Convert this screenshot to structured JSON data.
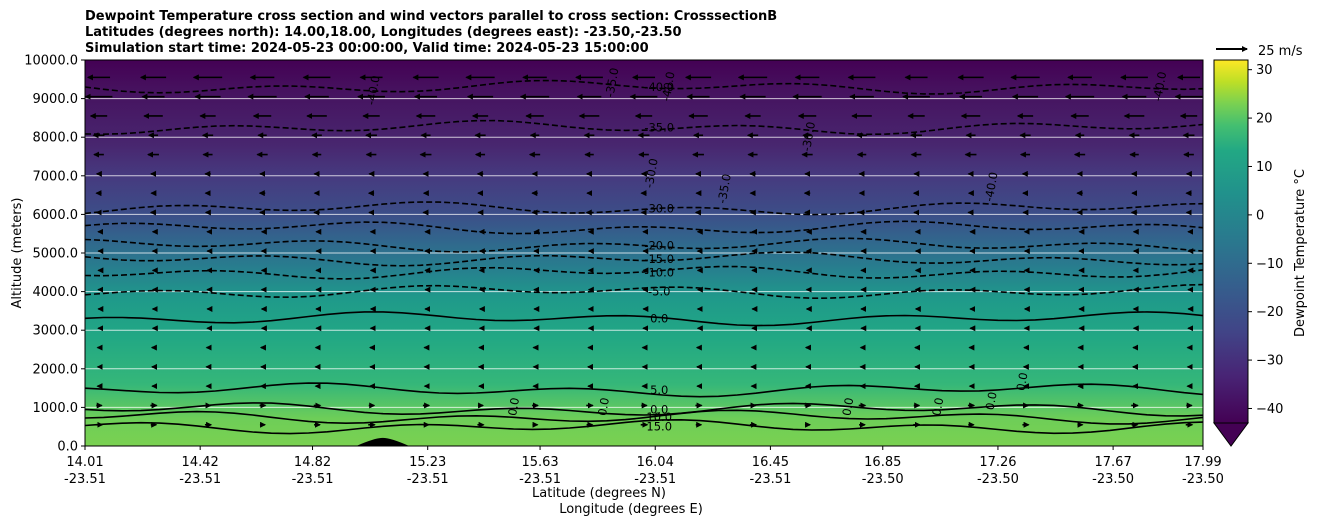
{
  "chart_data": {
    "type": "heatmap",
    "title_lines": [
      "Dewpoint Temperature cross section and wind vectors parallel to cross section: CrosssectionB",
      "Latitudes (degrees north): 14.00,18.00, Longitudes (degrees east): -23.50,-23.50",
      "Simulation start time: 2024-05-23 00:00:00, Valid time: 2024-05-23 15:00:00"
    ],
    "xlabel_lines": [
      "Latitude (degrees N)",
      "Longitude (degrees E)"
    ],
    "ylabel": "Altitude (meters)",
    "x_ticks": [
      {
        "lat": "14.01",
        "lon": "-23.51"
      },
      {
        "lat": "14.42",
        "lon": "-23.51"
      },
      {
        "lat": "14.82",
        "lon": "-23.51"
      },
      {
        "lat": "15.23",
        "lon": "-23.51"
      },
      {
        "lat": "15.63",
        "lon": "-23.51"
      },
      {
        "lat": "16.04",
        "lon": "-23.51"
      },
      {
        "lat": "16.45",
        "lon": "-23.51"
      },
      {
        "lat": "16.85",
        "lon": "-23.50"
      },
      {
        "lat": "17.26",
        "lon": "-23.50"
      },
      {
        "lat": "17.67",
        "lon": "-23.50"
      },
      {
        "lat": "17.99",
        "lon": "-23.50"
      }
    ],
    "xlim": [
      14.01,
      17.99
    ],
    "y_ticks": [
      "0.0",
      "1000.0",
      "2000.0",
      "3000.0",
      "4000.0",
      "5000.0",
      "6000.0",
      "7000.0",
      "8000.0",
      "9000.0",
      "10000.0"
    ],
    "ylim": [
      0,
      10000
    ],
    "grid": "horizontal",
    "colorbar": {
      "label": "Dewpoint Temperature °C",
      "ticks": [
        "−40",
        "−30",
        "−20",
        "−10",
        "0",
        "10",
        "20",
        "30"
      ],
      "range": [
        -43,
        32
      ],
      "extend": "min",
      "colormap": "viridis"
    },
    "quiver_key": "25 m/s",
    "contours": [
      {
        "level": -40.0,
        "label": "-40.0",
        "style": "dashed",
        "altitude": 9300
      },
      {
        "level": -35.0,
        "label": "-35.0",
        "style": "dashed",
        "altitude": 8250
      },
      {
        "level": -30.0,
        "label": "-30.0",
        "style": "dashed",
        "altitude": 6150
      },
      {
        "level": -25.0,
        "label": "",
        "style": "dashed",
        "altitude": 5650
      },
      {
        "level": -20.0,
        "label": "-20.0",
        "style": "dashed",
        "altitude": 5200
      },
      {
        "level": -15.0,
        "label": "-15.0",
        "style": "dashed",
        "altitude": 4850
      },
      {
        "level": -10.0,
        "label": "-10.0",
        "style": "dashed",
        "altitude": 4500
      },
      {
        "level": -5.0,
        "label": "-5.0",
        "style": "dashed",
        "altitude": 4000
      },
      {
        "level": 0.0,
        "label": "0.0",
        "style": "solid",
        "altitude": 3300
      },
      {
        "level": 5.0,
        "label": "5.0",
        "style": "solid",
        "altitude": 1450
      },
      {
        "level": 0.0,
        "label": "0.0",
        "style": "solid",
        "altitude": 950
      },
      {
        "level": 10.0,
        "label": "10.0",
        "style": "solid",
        "altitude": 750
      },
      {
        "level": 15.0,
        "label": "15.0",
        "style": "solid",
        "altitude": 500
      }
    ],
    "extra_contour_labels": [
      {
        "text": "-30.0",
        "lat": 16.04,
        "alt": 7050
      },
      {
        "text": "-40.0",
        "lat": 15.05,
        "alt": 9200
      },
      {
        "text": "-35.0",
        "lat": 16.3,
        "alt": 6650
      },
      {
        "text": "-30.0",
        "lat": 16.6,
        "alt": 8000
      },
      {
        "text": "-40.0",
        "lat": 17.25,
        "alt": 6700
      },
      {
        "text": "-40.0",
        "lat": 17.85,
        "alt": 9300
      },
      {
        "text": "-35.0",
        "lat": 15.9,
        "alt": 9400
      },
      {
        "text": "-40.0",
        "lat": 16.1,
        "alt": 9300
      },
      {
        "text": "0.0",
        "lat": 15.55,
        "alt": 1000
      },
      {
        "text": "0.0",
        "lat": 15.87,
        "alt": 1000
      },
      {
        "text": "0.0",
        "lat": 16.74,
        "alt": 1000
      },
      {
        "text": "0.0",
        "lat": 17.06,
        "alt": 1000
      },
      {
        "text": "0.0",
        "lat": 17.25,
        "alt": 1150
      },
      {
        "text": "0.0",
        "lat": 17.36,
        "alt": 1650
      }
    ],
    "terrain": {
      "lat_start": 15.04,
      "lat_end": 15.1,
      "lat_peak": 15.07,
      "peak_altitude": 210
    }
  }
}
